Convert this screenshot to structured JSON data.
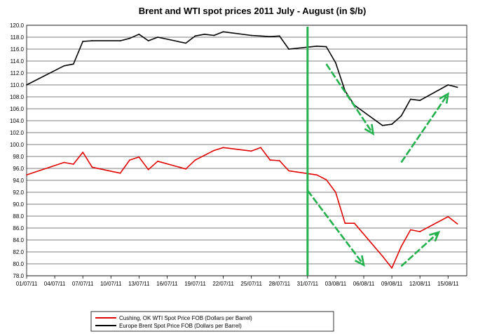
{
  "chart_data": {
    "type": "line",
    "title": "Brent and WTI spot prices 2011 July - August (in $/b)",
    "xlabel": "",
    "ylabel": "",
    "ylim": [
      78,
      120
    ],
    "y_tick_step": 2,
    "grid": true,
    "legend_position": "bottom",
    "x_tick_labels": [
      "01/07/11",
      "04/07/11",
      "07/07/11",
      "10/07/11",
      "13/07/11",
      "16/07/11",
      "19/07/11",
      "22/07/11",
      "25/07/11",
      "28/07/11",
      "31/07/11",
      "03/08/11",
      "06/08/11",
      "09/08/11",
      "12/08/11",
      "15/08/11"
    ],
    "x": [
      "01/07/11",
      "05/07/11",
      "06/07/11",
      "07/07/11",
      "08/07/11",
      "11/07/11",
      "12/07/11",
      "13/07/11",
      "14/07/11",
      "15/07/11",
      "18/07/11",
      "19/07/11",
      "20/07/11",
      "21/07/11",
      "22/07/11",
      "25/07/11",
      "26/07/11",
      "27/07/11",
      "28/07/11",
      "29/07/11",
      "01/08/11",
      "02/08/11",
      "03/08/11",
      "04/08/11",
      "05/08/11",
      "08/08/11",
      "09/08/11",
      "10/08/11",
      "11/08/11",
      "12/08/11",
      "15/08/11",
      "16/08/11"
    ],
    "series": [
      {
        "name": "Cushing, OK WTI Spot Price FOB (Dollars per Barrel)",
        "color": "#e00000",
        "values": [
          94.9,
          97.0,
          96.7,
          98.7,
          96.2,
          95.2,
          97.4,
          97.9,
          95.8,
          97.2,
          95.9,
          97.4,
          98.2,
          99.0,
          99.5,
          98.9,
          99.5,
          97.4,
          97.3,
          95.6,
          94.9,
          94.1,
          92.0,
          86.8,
          86.8,
          81.3,
          79.3,
          82.9,
          85.7,
          85.4,
          87.9,
          86.7
        ]
      },
      {
        "name": "Europe Brent Spot Price FOB (Dollars per Barrel)",
        "color": "#000000",
        "values": [
          110.0,
          113.2,
          113.5,
          117.3,
          117.4,
          117.4,
          117.8,
          118.5,
          117.4,
          118.0,
          117.0,
          118.2,
          118.5,
          118.3,
          118.9,
          118.3,
          118.2,
          118.1,
          118.2,
          116.0,
          116.5,
          116.4,
          113.7,
          109.0,
          106.6,
          103.2,
          103.4,
          104.8,
          107.6,
          107.4,
          110.0,
          109.6
        ]
      }
    ],
    "annotation_colors": {
      "marker": "#22b14c"
    },
    "annotations": {
      "vertical_marker_at": "31/07/11",
      "arrows": [
        {
          "from": [
            "02/08/11",
            113.5
          ],
          "to": [
            "07/08/11",
            101.8
          ],
          "color": "#22b14c"
        },
        {
          "from": [
            "10/08/11",
            97.0
          ],
          "to": [
            "15/08/11",
            108.5
          ],
          "color": "#22b14c"
        },
        {
          "from": [
            "31/07/11",
            92.3
          ],
          "to": [
            "06/08/11",
            79.8
          ],
          "color": "#22b14c"
        },
        {
          "from": [
            "10/08/11",
            79.6
          ],
          "to": [
            "14/08/11",
            85.3
          ],
          "color": "#22b14c"
        }
      ]
    }
  }
}
